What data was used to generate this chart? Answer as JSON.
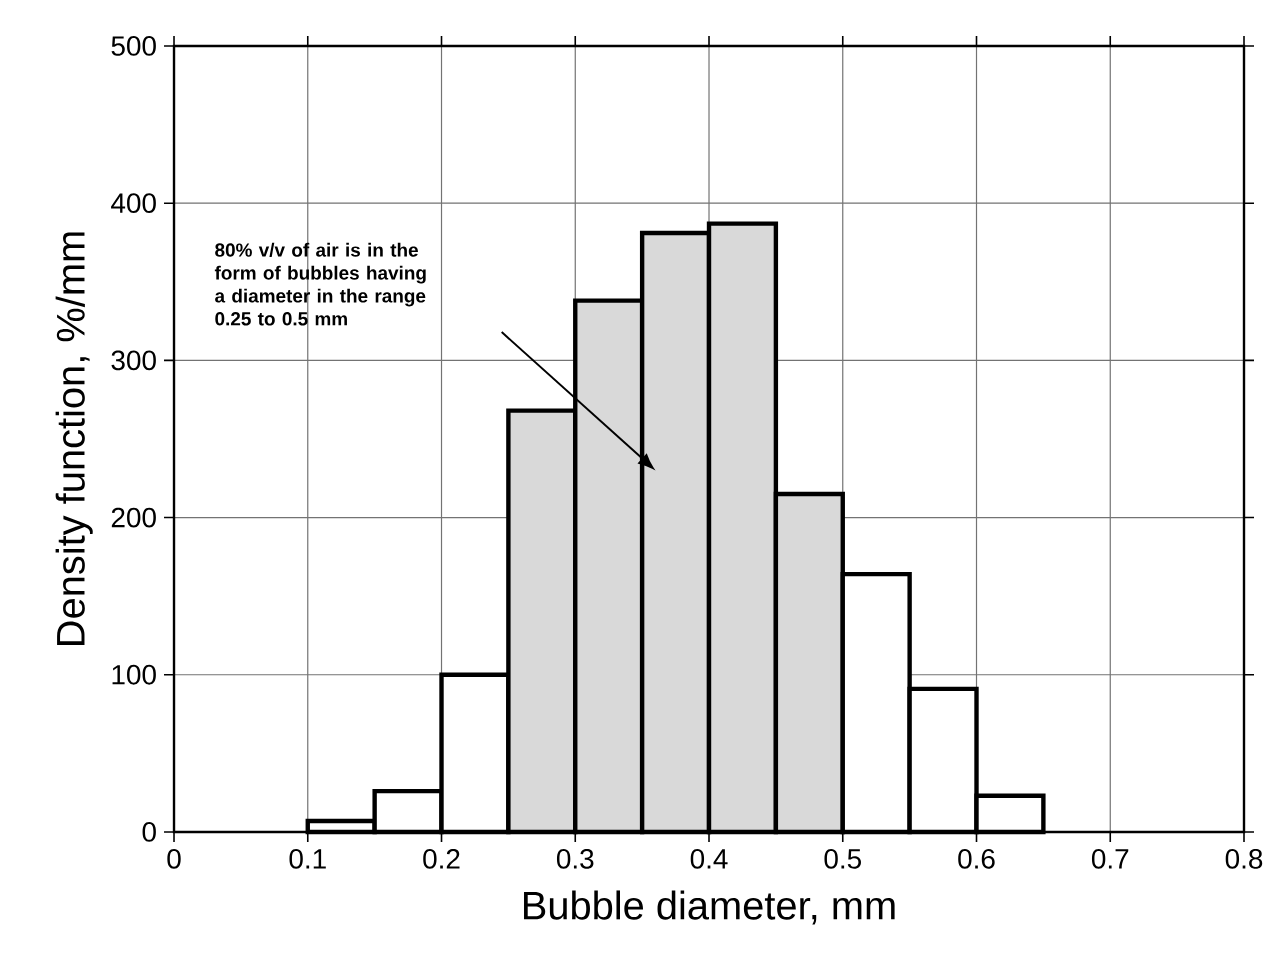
{
  "chart_data": {
    "type": "histogram",
    "xlabel": "Bubble diameter, mm",
    "ylabel": "Density function, %/mm",
    "bins": [
      0.1,
      0.15,
      0.2,
      0.25,
      0.3,
      0.35,
      0.4,
      0.45,
      0.5,
      0.55,
      0.6,
      0.65
    ],
    "values": [
      7,
      26,
      100,
      268,
      338,
      381,
      387,
      215,
      164,
      91,
      23
    ],
    "color": "#000000",
    "colors": [
      "#ffffff",
      "#ffffff",
      "#ffffff",
      "#d9d9d9",
      "#d9d9d9",
      "#d9d9d9",
      "#d9d9d9",
      "#d9d9d9",
      "#ffffff",
      "#ffffff",
      "#ffffff"
    ],
    "xlim": [
      0,
      0.8
    ],
    "xticks": [
      0,
      0.1,
      0.2,
      0.3,
      0.4,
      0.5,
      0.6,
      0.7,
      0.8
    ],
    "ylim": [
      0,
      500
    ],
    "yticks": [
      0,
      100,
      200,
      300,
      400,
      500
    ],
    "grid": true,
    "annotations": [
      "80% v/v of air is in the form of bubbles having a diameter in the range 0.25 to 0.5 mm"
    ]
  }
}
